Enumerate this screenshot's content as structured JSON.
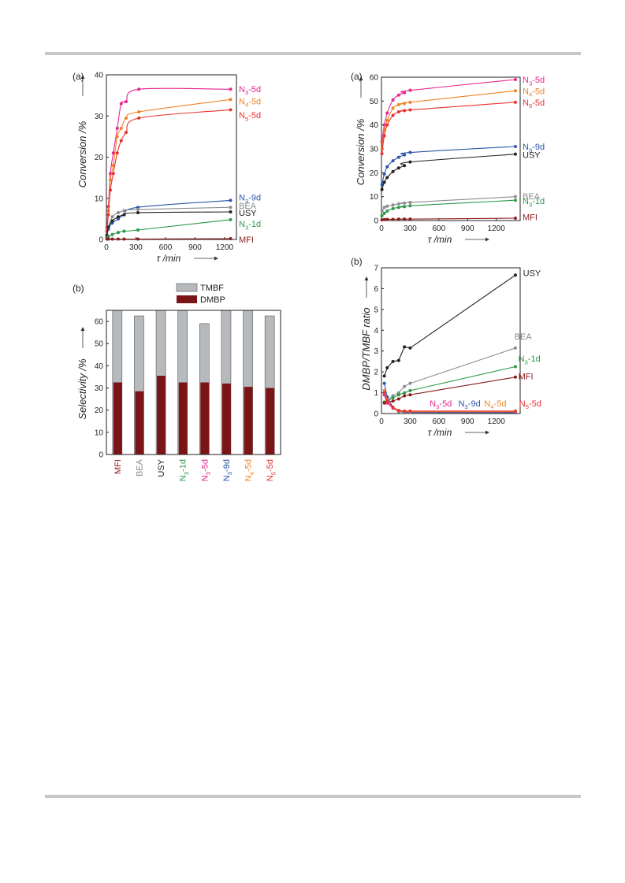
{
  "colors": {
    "N3_5d": "#e8258e",
    "N4_5d": "#f08224",
    "N5_5d": "#e8322e",
    "N3_9d": "#2b56a8",
    "BEA": "#8a8c8e",
    "USY": "#222222",
    "N3_1d": "#2a9a48",
    "MFI": "#8a1c1c",
    "TMBF_bar": "#b7babd",
    "DMBP_bar": "#7b1416"
  },
  "chart_data": [
    {
      "id": "left-a",
      "type": "line",
      "panel_label": "(a)",
      "xlabel": "τ /min",
      "ylabel": "Conversion /%",
      "xlim": [
        0,
        1320
      ],
      "ylim": [
        0,
        40
      ],
      "xticks": [
        "0",
        "300",
        "600",
        "900",
        "1200"
      ],
      "yticks": [
        "0",
        "10",
        "20",
        "30",
        "40"
      ],
      "series": [
        {
          "key": "N3_5d",
          "label": [
            "N",
            "3",
            "-5d"
          ],
          "labelY": 36.6,
          "x": [
            5,
            20,
            40,
            70,
            110,
            150,
            200,
            330,
            1260
          ],
          "y": [
            3,
            8,
            16,
            21,
            27,
            33,
            33.5,
            36.5,
            36.5
          ]
        },
        {
          "key": "N4_5d",
          "label": [
            "N",
            "4",
            "-5d"
          ],
          "labelY": 33.6,
          "x": [
            5,
            20,
            40,
            70,
            110,
            150,
            200,
            330,
            1260
          ],
          "y": [
            2.5,
            7,
            14.5,
            18,
            25,
            27,
            29.5,
            31,
            34
          ]
        },
        {
          "key": "N5_5d",
          "label": [
            "N",
            "5",
            "-5d"
          ],
          "labelY": 30.2,
          "x": [
            5,
            20,
            40,
            70,
            110,
            150,
            200,
            330,
            1260
          ],
          "y": [
            2,
            6,
            12,
            16,
            21,
            24,
            26,
            29.5,
            31.5
          ]
        },
        {
          "key": "N3_9d",
          "label": [
            "N",
            "3",
            "-9d"
          ],
          "labelY": 10.2,
          "x": [
            5,
            20,
            60,
            120,
            180,
            320,
            1260
          ],
          "y": [
            0.5,
            2.5,
            4,
            5,
            6,
            7.8,
            9.5
          ]
        },
        {
          "key": "BEA",
          "label": [
            "BEA"
          ],
          "labelY": 8.2,
          "x": [
            5,
            20,
            60,
            120,
            180,
            320,
            1260
          ],
          "y": [
            1,
            3,
            5.5,
            6.5,
            7,
            7.3,
            7.8
          ]
        },
        {
          "key": "USY",
          "label": [
            "USY"
          ],
          "labelY": 6.5,
          "x": [
            5,
            20,
            60,
            120,
            180,
            320,
            1260
          ],
          "y": [
            1,
            3,
            4.5,
            5.5,
            6,
            6.5,
            6.7
          ]
        },
        {
          "key": "N3_1d",
          "label": [
            "N",
            "3",
            "-1d"
          ],
          "labelY": 3.8,
          "x": [
            5,
            20,
            60,
            120,
            180,
            320,
            1260
          ],
          "y": [
            0.3,
            0.7,
            1.2,
            1.7,
            2,
            2.3,
            4.8
          ]
        },
        {
          "key": "MFI",
          "label": [
            "MFI"
          ],
          "labelY": 0,
          "x": [
            5,
            20,
            60,
            120,
            180,
            320,
            1260
          ],
          "y": [
            0.1,
            0.1,
            0.1,
            0.1,
            0.1,
            0.1,
            0.2
          ]
        }
      ]
    },
    {
      "id": "left-b",
      "type": "bar",
      "panel_label": "(b)",
      "xlabel": "",
      "ylabel": "Selectivity /%",
      "ylim": [
        0,
        65
      ],
      "yticks": [
        "0",
        "10",
        "20",
        "30",
        "40",
        "50",
        "60"
      ],
      "legend": [
        "TMBF",
        "DMBP"
      ],
      "categories": [
        {
          "key": "MFI",
          "label": [
            "MFI"
          ]
        },
        {
          "key": "BEA",
          "label": [
            "BEA"
          ]
        },
        {
          "key": "USY",
          "label": [
            "USY"
          ]
        },
        {
          "key": "N3_1d",
          "label": [
            "N",
            "3",
            "-1d"
          ]
        },
        {
          "key": "N3_5d",
          "label": [
            "N",
            "3",
            "-5d"
          ]
        },
        {
          "key": "N3_9d",
          "label": [
            "N",
            "3",
            "-9d"
          ]
        },
        {
          "key": "N4_5d",
          "label": [
            "N",
            "4",
            "-5d"
          ]
        },
        {
          "key": "N5_5d",
          "label": [
            "N",
            "5",
            "-5d"
          ]
        }
      ],
      "series": [
        {
          "name": "TMBF",
          "values": [
            66.5,
            62.5,
            65,
            66.5,
            59,
            66.5,
            66.5,
            62.5
          ]
        },
        {
          "name": "DMBP",
          "values": [
            32.5,
            28.5,
            35.5,
            32.5,
            32.5,
            32,
            30.5,
            30
          ]
        }
      ]
    },
    {
      "id": "right-a",
      "type": "line",
      "panel_label": "(a)",
      "xlabel": "τ /min",
      "ylabel": "Conversion /%",
      "xlim": [
        0,
        1450
      ],
      "ylim": [
        0,
        60
      ],
      "xticks": [
        "0",
        "300",
        "600",
        "900",
        "1200"
      ],
      "yticks": [
        "0",
        "10",
        "20",
        "30",
        "40",
        "50",
        "60"
      ],
      "series": [
        {
          "key": "N3_5d",
          "label": [
            "N",
            "3",
            "-5d"
          ],
          "labelY": 59,
          "x": [
            5,
            30,
            60,
            120,
            180,
            240,
            300,
            1400
          ],
          "y": [
            33,
            40,
            45,
            50.5,
            52.5,
            53.5,
            54.5,
            59
          ]
        },
        {
          "key": "N4_5d",
          "label": [
            "N",
            "4",
            "-5d"
          ],
          "labelY": 54.3,
          "x": [
            5,
            30,
            60,
            120,
            180,
            240,
            300,
            1400
          ],
          "y": [
            30,
            38,
            42,
            47,
            48.5,
            49,
            49.5,
            54.3
          ]
        },
        {
          "key": "N5_5d",
          "label": [
            "N",
            "5",
            "-5d"
          ],
          "labelY": 49.5,
          "x": [
            5,
            30,
            60,
            120,
            180,
            240,
            300,
            1400
          ],
          "y": [
            28,
            35.5,
            40,
            44,
            45.5,
            46,
            46.3,
            49.5
          ]
        },
        {
          "key": "N3_9d",
          "label": [
            "N",
            "3",
            "-9d"
          ],
          "labelY": 31,
          "x": [
            5,
            30,
            60,
            120,
            180,
            240,
            300,
            1400
          ],
          "y": [
            15,
            19.5,
            22.5,
            25,
            26.5,
            27.5,
            28.5,
            31
          ]
        },
        {
          "key": "USY",
          "label": [
            "USY"
          ],
          "labelY": 27.5,
          "x": [
            5,
            30,
            60,
            120,
            180,
            240,
            300,
            1400
          ],
          "y": [
            13,
            16,
            18,
            20.5,
            22,
            23,
            24.5,
            27.8
          ]
        },
        {
          "key": "BEA",
          "label": [
            "BEA"
          ],
          "labelY": 10.2,
          "x": [
            5,
            30,
            60,
            120,
            180,
            240,
            300,
            1400
          ],
          "y": [
            4,
            5.5,
            6,
            6.5,
            7,
            7.3,
            7.6,
            10
          ]
        },
        {
          "key": "N3_1d",
          "label": [
            "N",
            "3",
            "-1d"
          ],
          "labelY": 8.2,
          "x": [
            5,
            30,
            60,
            120,
            180,
            240,
            300,
            1400
          ],
          "y": [
            2,
            3,
            4,
            5,
            5.5,
            5.8,
            6.2,
            8.5
          ]
        },
        {
          "key": "MFI",
          "label": [
            "MFI"
          ],
          "labelY": 1.5,
          "x": [
            5,
            30,
            60,
            120,
            180,
            240,
            300,
            1400
          ],
          "y": [
            0.3,
            0.4,
            0.5,
            0.5,
            0.6,
            0.6,
            0.6,
            1
          ]
        }
      ]
    },
    {
      "id": "right-b",
      "type": "line",
      "panel_label": "(b)",
      "xlabel": "τ /min",
      "ylabel": "DMBP/TMBF ratio",
      "xlim": [
        0,
        1450
      ],
      "ylim": [
        0,
        7
      ],
      "xticks": [
        "0",
        "300",
        "600",
        "900",
        "1200"
      ],
      "yticks": [
        "0",
        "1",
        "2",
        "3",
        "4",
        "5",
        "6",
        "7"
      ],
      "series": [
        {
          "key": "USY",
          "label": [
            "USY"
          ],
          "labelPos": [
            1480,
            6.75
          ],
          "x": [
            30,
            60,
            120,
            180,
            240,
            300,
            1400
          ],
          "y": [
            1.8,
            2.2,
            2.5,
            2.55,
            3.2,
            3.15,
            6.65
          ]
        },
        {
          "key": "BEA",
          "label": [
            "BEA"
          ],
          "labelPos": [
            1390,
            3.7
          ],
          "x": [
            30,
            60,
            120,
            180,
            240,
            300,
            1400
          ],
          "y": [
            0.55,
            0.65,
            0.85,
            1.0,
            1.3,
            1.45,
            3.15
          ]
        },
        {
          "key": "N3_1d",
          "label": [
            "N",
            "3",
            "-1d"
          ],
          "labelPos": [
            1430,
            2.65
          ],
          "x": [
            30,
            60,
            120,
            180,
            240,
            300,
            1400
          ],
          "y": [
            0.55,
            0.6,
            0.75,
            0.9,
            1.0,
            1.1,
            2.25
          ]
        },
        {
          "key": "MFI",
          "label": [
            "MFI"
          ],
          "labelPos": [
            1430,
            1.8
          ],
          "x": [
            30,
            60,
            120,
            180,
            240,
            300,
            1400
          ],
          "y": [
            0.5,
            0.55,
            0.6,
            0.7,
            0.85,
            0.9,
            1.75
          ]
        },
        {
          "key": "N3_5d",
          "label": [
            "N",
            "3",
            "-5d"
          ],
          "labelPos": [
            620,
            0.5
          ],
          "x": [
            30,
            60,
            120,
            180,
            240,
            300,
            1400
          ],
          "y": [
            0.9,
            0.5,
            0.25,
            0.1,
            0.08,
            0.07,
            0.07
          ]
        },
        {
          "key": "N3_9d",
          "label": [
            "N",
            "3",
            "-9d"
          ],
          "labelPos": [
            920,
            0.5
          ],
          "x": [
            30,
            60,
            120,
            180,
            240,
            300,
            1400
          ],
          "y": [
            1.45,
            0.8,
            0.3,
            0.1,
            0.06,
            0.05,
            0.04
          ]
        },
        {
          "key": "N4_5d",
          "label": [
            "N",
            "4",
            "-5d"
          ],
          "labelPos": [
            1190,
            0.5
          ],
          "x": [
            30,
            60,
            120,
            180,
            240,
            300,
            1400
          ],
          "y": [
            1.1,
            0.65,
            0.28,
            0.12,
            0.1,
            0.09,
            0.09
          ]
        },
        {
          "key": "N5_5d",
          "label": [
            "N",
            "5",
            "-5d"
          ],
          "labelPos": [
            1440,
            0.5
          ],
          "x": [
            30,
            60,
            120,
            180,
            240,
            300,
            1400
          ],
          "y": [
            1.0,
            0.6,
            0.3,
            0.15,
            0.12,
            0.12,
            0.12
          ]
        }
      ]
    }
  ]
}
